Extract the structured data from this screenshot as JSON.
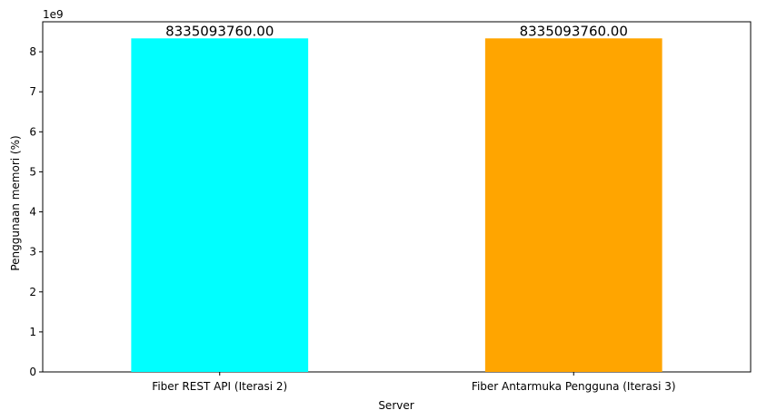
{
  "chart_data": {
    "type": "bar",
    "categories": [
      "Fiber REST API (Iterasi 2)",
      "Fiber Antarmuka Pengguna (Iterasi 3)"
    ],
    "values": [
      8335093760.0,
      8335093760.0
    ],
    "data_labels": [
      "8335093760.00",
      "8335093760.00"
    ],
    "bar_colors": [
      "#00ffff",
      "#ffa500"
    ],
    "xlabel": "Server",
    "ylabel": "Penggunaan memori (%)",
    "ylim": [
      0,
      8750000000
    ],
    "yticks": [
      0,
      1,
      2,
      3,
      4,
      5,
      6,
      7,
      8
    ],
    "y_scale_factor": 1000000000,
    "offset_label": "1e9",
    "grid": false,
    "legend": false
  }
}
